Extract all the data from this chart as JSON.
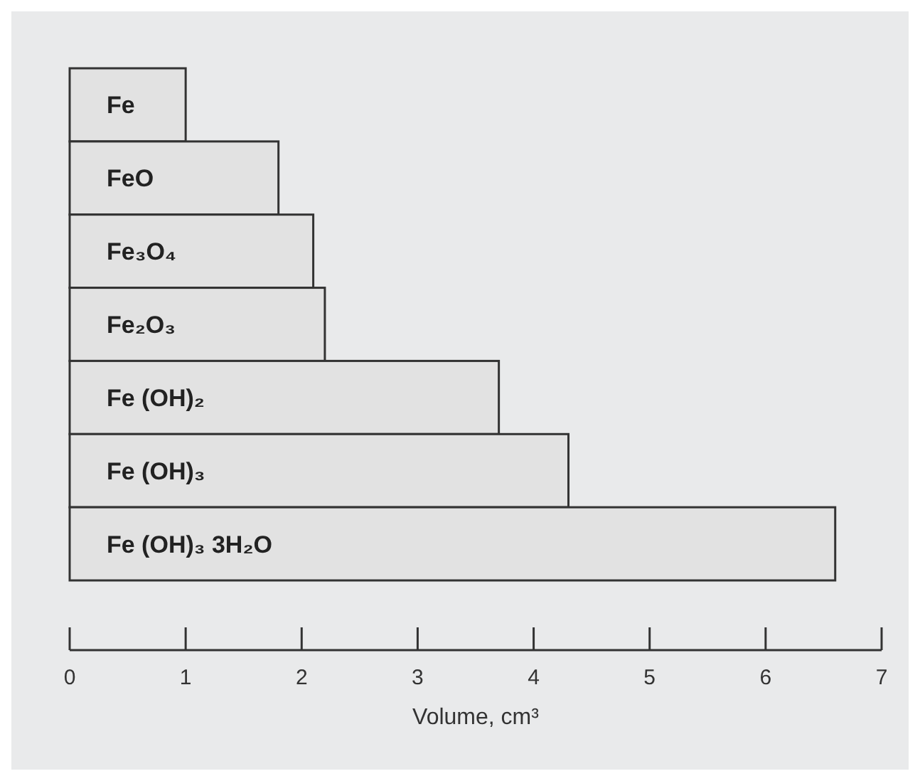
{
  "chart_data": {
    "type": "bar",
    "orientation": "horizontal",
    "categories": [
      "Fe",
      "FeO",
      "Fe₃O₄",
      "Fe₂O₃",
      "Fe (OH)₂",
      "Fe (OH)₃",
      "Fe (OH)₃ 3H₂O"
    ],
    "values": [
      1.0,
      1.8,
      2.1,
      2.2,
      3.7,
      4.3,
      6.6
    ],
    "color": "#e2e2e2",
    "xlabel": "Volume, cm³",
    "xlim": [
      0,
      7
    ],
    "xticks": [
      0,
      1,
      2,
      3,
      4,
      5,
      6,
      7
    ],
    "grid": false
  }
}
